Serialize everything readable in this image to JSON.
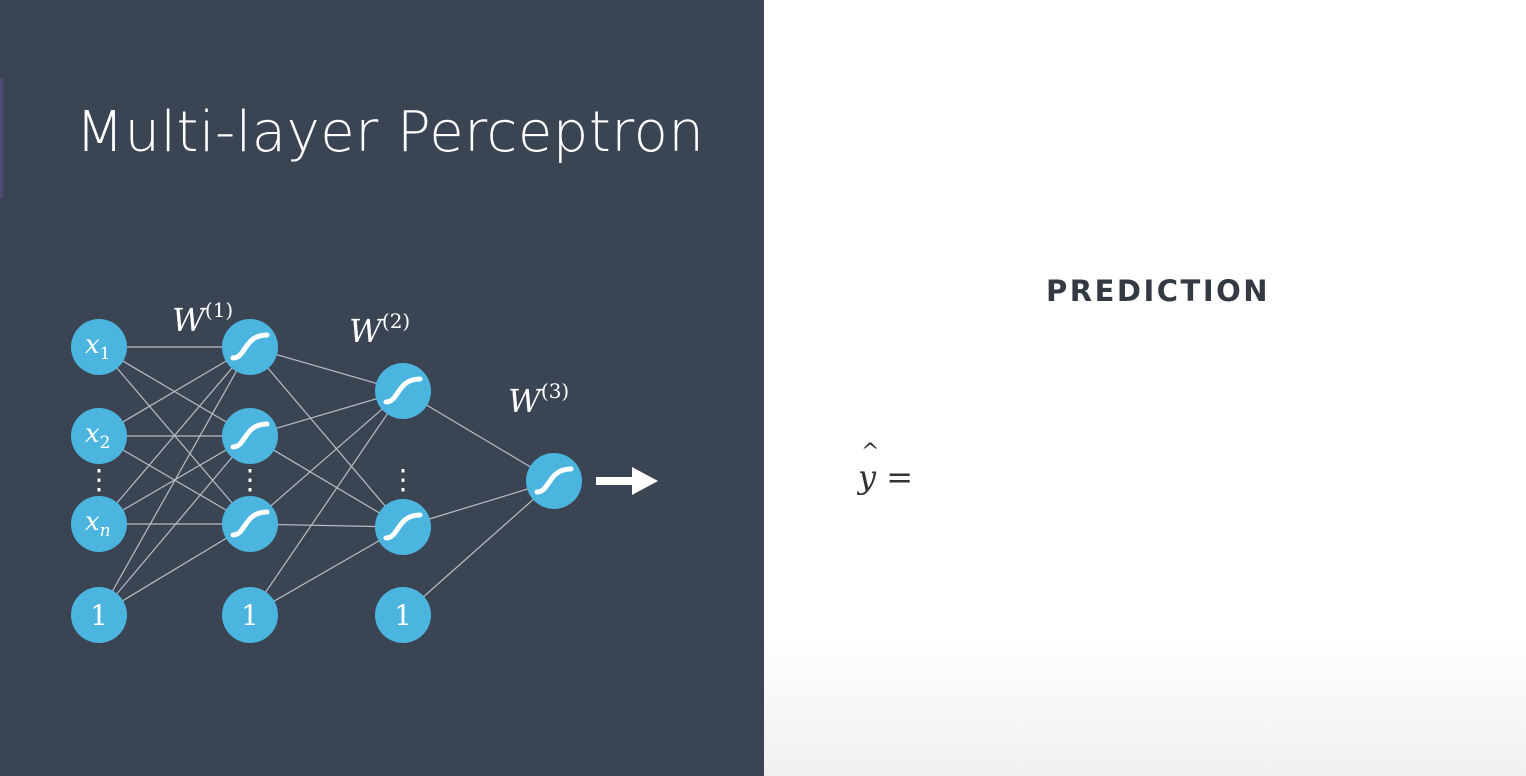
{
  "slide": {
    "title": "Multi-layer Perceptron"
  },
  "network": {
    "input_labels": [
      "x",
      "x",
      "x"
    ],
    "input_subscripts": [
      "1",
      "2",
      "n"
    ],
    "bias_label": "1",
    "weight_labels": [
      {
        "symbol": "W",
        "superscript": "(1)"
      },
      {
        "symbol": "W",
        "superscript": "(2)"
      },
      {
        "symbol": "W",
        "superscript": "(3)"
      }
    ],
    "ellipsis": "⋮",
    "activation_icon": "sigmoid-curve-icon",
    "output_arrow_icon": "right-arrow-icon"
  },
  "prediction": {
    "heading": "PREDICTION",
    "yhat_hat": "^",
    "yhat_var": "y",
    "equals": "="
  },
  "colors": {
    "background_dark": "#3b4452",
    "node_fill": "#4bb5e0",
    "edge_color": "#b9bec6",
    "text_light": "#ffffff",
    "text_dark": "#333a44"
  }
}
